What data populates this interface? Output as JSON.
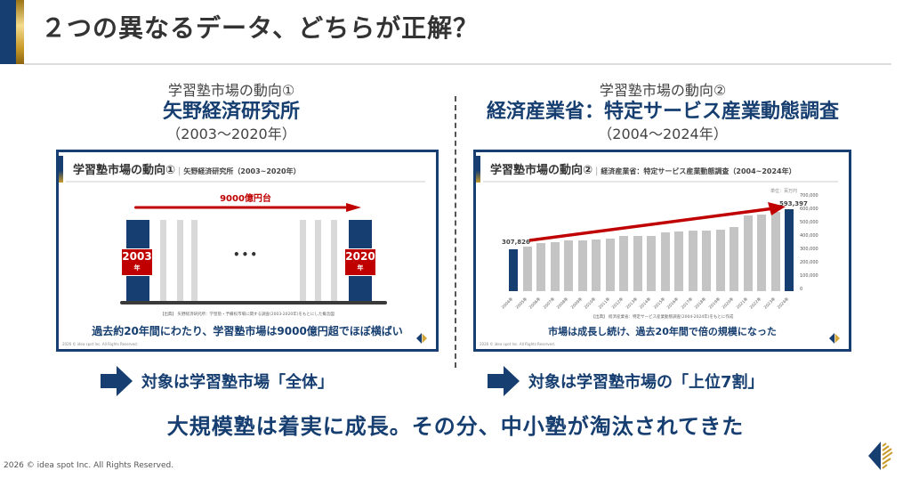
{
  "header": {
    "title": "２つの異なるデータ、どちらが正解？"
  },
  "columns": {
    "left": {
      "subtitle": "学習塾市場の動向①",
      "source_name": "矢野経済研究所",
      "years": "（2003～2020年）"
    },
    "right": {
      "subtitle": "学習塾市場の動向②",
      "source_name": "経済産業省：特定サービス産業動態調査",
      "years": "（2004～2024年）"
    }
  },
  "cards": {
    "left": {
      "title": "学習塾市場の動向①",
      "separator": "|",
      "subtitle": "矢野経済研究所（2003~2020年）",
      "arrow_label": "9000億円台",
      "start_year": "2003",
      "end_year": "2020",
      "year_suffix": "年",
      "ellipsis": "•••",
      "source": "【出典】 矢野経済研究所：学習塾・予備校市場に関する調査(2003-2020年)をもとにした概念図",
      "caption": "過去約20年間にわたり、学習塾市場は9000億円超でほぼ横ばい",
      "copyright": "2026 © idea spot Inc. All Rights Reserved."
    },
    "right": {
      "title": "学習塾市場の動向②",
      "separator": "|",
      "subtitle": "経済産業省：特定サービス産業動態調査（2004~2024年）",
      "unit": "単位：百万円",
      "start_value_label": "307,826",
      "end_value_label": "593,397",
      "source": "【出典】 経済産業省：特定サービス産業動態調査(2004-2024年)をもとに作成",
      "caption": "市場は成長し続け、過去20年間で倍の規模になった",
      "copyright": "2026 © idea spot Inc. All Rights Reserved."
    }
  },
  "chart_data": [
    {
      "type": "bar",
      "title": "学習塾市場の動向① 矢野経済研究所（2003~2020年）",
      "categories": [
        "2003年",
        "…",
        "2020年"
      ],
      "values": [
        9000,
        null,
        9000
      ],
      "annotations": [
        "9000億円台",
        "過去約20年間にわたり、学習塾市場は9000億円超でほぼ横ばい"
      ],
      "xlabel": "",
      "ylabel": "億円",
      "note": "conceptual diagram, flat trend"
    },
    {
      "type": "bar",
      "title": "学習塾市場の動向② 経済産業省：特定サービス産業動態調査（2004~2024年）",
      "categories": [
        "2004年",
        "2005年",
        "2006年",
        "2007年",
        "2008年",
        "2009年",
        "2010年",
        "2011年",
        "2012年",
        "2013年",
        "2014年",
        "2015年",
        "2016年",
        "2017年",
        "2018年",
        "2019年",
        "2020年",
        "2021年",
        "2022年",
        "2023年",
        "2024年"
      ],
      "values": [
        307826,
        324000,
        347000,
        356000,
        367000,
        367000,
        373000,
        382000,
        405000,
        403000,
        403000,
        429000,
        434000,
        441000,
        443000,
        447000,
        470000,
        550000,
        555000,
        577000,
        593397
      ],
      "yticks": [
        "0",
        "100,000",
        "200,000",
        "300,000",
        "400,000",
        "500,000",
        "600,000",
        "700,000"
      ],
      "ylim": [
        0,
        700000
      ],
      "ylabel": "単位：百万円",
      "xlabel": "",
      "annotations": [
        "307,826",
        "593,397"
      ],
      "grid": false,
      "legend": "none"
    }
  ],
  "takeaways": {
    "left": "対象は学習塾市場「全体」",
    "right": "対象は学習塾市場の「上位7割」"
  },
  "conclusion": "大規模塾は着実に成長。その分、中小塾が淘汰されてきた",
  "footer": {
    "copyright": "2026 © idea spot Inc. All Rights Reserved."
  },
  "colors": {
    "navy": "#163e70",
    "gold": "#c89a2a",
    "red": "#c00000",
    "gray_bar": "#c4c4c4"
  }
}
